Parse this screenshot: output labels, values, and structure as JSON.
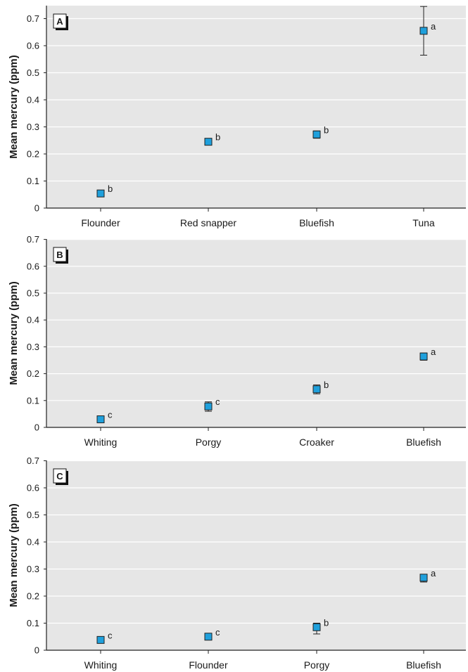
{
  "chart_data": [
    {
      "type": "scatter",
      "panel_label": "A",
      "ylabel": "Mean mercury (ppm)",
      "ylim": [
        0,
        0.75
      ],
      "yticks": [
        "0",
        "0.1",
        "0.2",
        "0.3",
        "0.4",
        "0.5",
        "0.6",
        "0.7"
      ],
      "grid": true,
      "categories": [
        "Flounder",
        "Red snapper",
        "Bluefish",
        "Tuna"
      ],
      "values": [
        0.054,
        0.245,
        0.272,
        0.655
      ],
      "error_low": [
        0.05,
        0.24,
        0.258,
        0.565
      ],
      "error_high": [
        0.058,
        0.25,
        0.285,
        0.745
      ],
      "significance": [
        "b",
        "b",
        "b",
        "a"
      ],
      "marker_color": "#1fa0dc"
    },
    {
      "type": "scatter",
      "panel_label": "B",
      "ylabel": "Mean mercury (ppm)",
      "ylim": [
        0,
        0.7
      ],
      "yticks": [
        "0",
        "0.1",
        "0.2",
        "0.3",
        "0.4",
        "0.5",
        "0.6",
        "0.7"
      ],
      "grid": true,
      "categories": [
        "Whiting",
        "Porgy",
        "Croaker",
        "Bluefish"
      ],
      "values": [
        0.03,
        0.078,
        0.142,
        0.264
      ],
      "error_low": [
        0.026,
        0.06,
        0.125,
        0.25
      ],
      "error_high": [
        0.035,
        0.095,
        0.158,
        0.277
      ],
      "significance": [
        "c",
        "c",
        "b",
        "a"
      ],
      "marker_color": "#1fa0dc"
    },
    {
      "type": "scatter",
      "panel_label": "C",
      "ylabel": "Mean mercury (ppm)",
      "ylim": [
        0,
        0.7
      ],
      "yticks": [
        "0",
        "0.1",
        "0.2",
        "0.3",
        "0.4",
        "0.5",
        "0.6",
        "0.7"
      ],
      "grid": true,
      "categories": [
        "Whiting",
        "Flounder",
        "Porgy",
        "Bluefish"
      ],
      "values": [
        0.038,
        0.05,
        0.085,
        0.268
      ],
      "error_low": [
        0.034,
        0.045,
        0.06,
        0.252
      ],
      "error_high": [
        0.042,
        0.055,
        0.1,
        0.28
      ],
      "significance": [
        "c",
        "c",
        "b",
        "a"
      ],
      "marker_color": "#1fa0dc"
    }
  ]
}
